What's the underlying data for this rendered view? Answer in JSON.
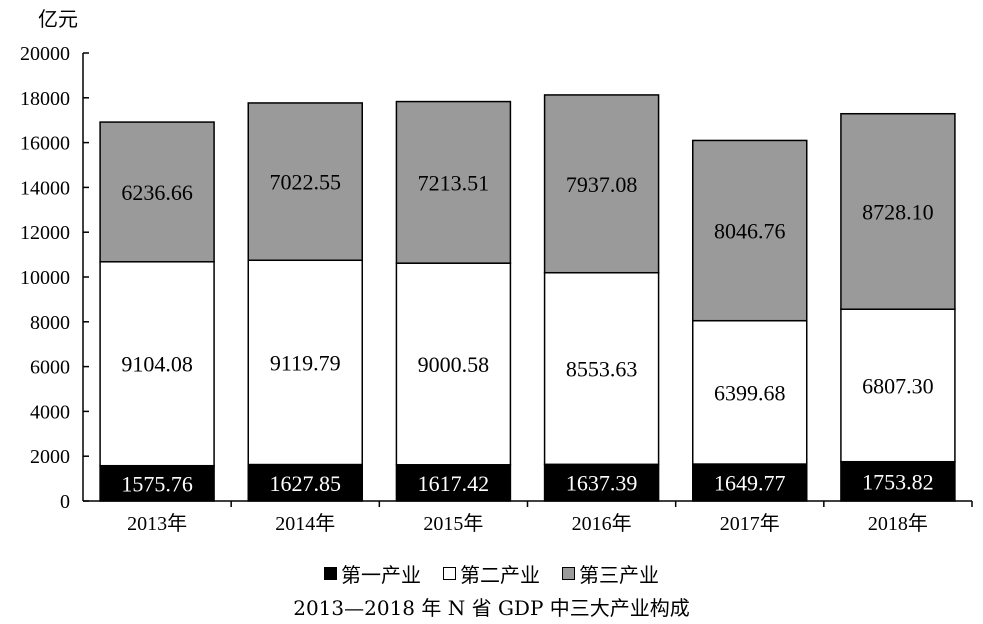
{
  "chart_data": {
    "type": "bar",
    "stacked": true,
    "ylabel": "亿元",
    "ylim": [
      0,
      20000
    ],
    "yticks": [
      0,
      2000,
      4000,
      6000,
      8000,
      10000,
      12000,
      14000,
      16000,
      18000,
      20000
    ],
    "categories": [
      "2013年",
      "2014年",
      "2015年",
      "2016年",
      "2017年",
      "2018年"
    ],
    "series": [
      {
        "name": "第一产业",
        "color": "#000000",
        "label_color": "#ffffff",
        "values": [
          1575.76,
          1627.85,
          1617.42,
          1637.39,
          1649.77,
          1753.82
        ],
        "labels": [
          "1575.76",
          "1627.85",
          "1617.42",
          "1637.39",
          "1649.77",
          "1753.82"
        ]
      },
      {
        "name": "第二产业",
        "color": "#ffffff",
        "label_color": "#000000",
        "values": [
          9104.08,
          9119.79,
          9000.58,
          8553.63,
          6399.68,
          6807.3
        ],
        "labels": [
          "9104.08",
          "9119.79",
          "9000.58",
          "8553.63",
          "6399.68",
          "6807.30"
        ]
      },
      {
        "name": "第三产业",
        "color": "#9a9a9a",
        "label_color": "#000000",
        "values": [
          6236.66,
          7022.55,
          7213.51,
          7937.08,
          8046.76,
          8728.1
        ],
        "labels": [
          "6236.66",
          "7022.55",
          "7213.51",
          "7937.08",
          "8046.76",
          "8728.10"
        ]
      }
    ],
    "legend": "bottom",
    "grid": false
  },
  "caption": "2013—2018 年 N 省 GDP 中三大产业构成"
}
